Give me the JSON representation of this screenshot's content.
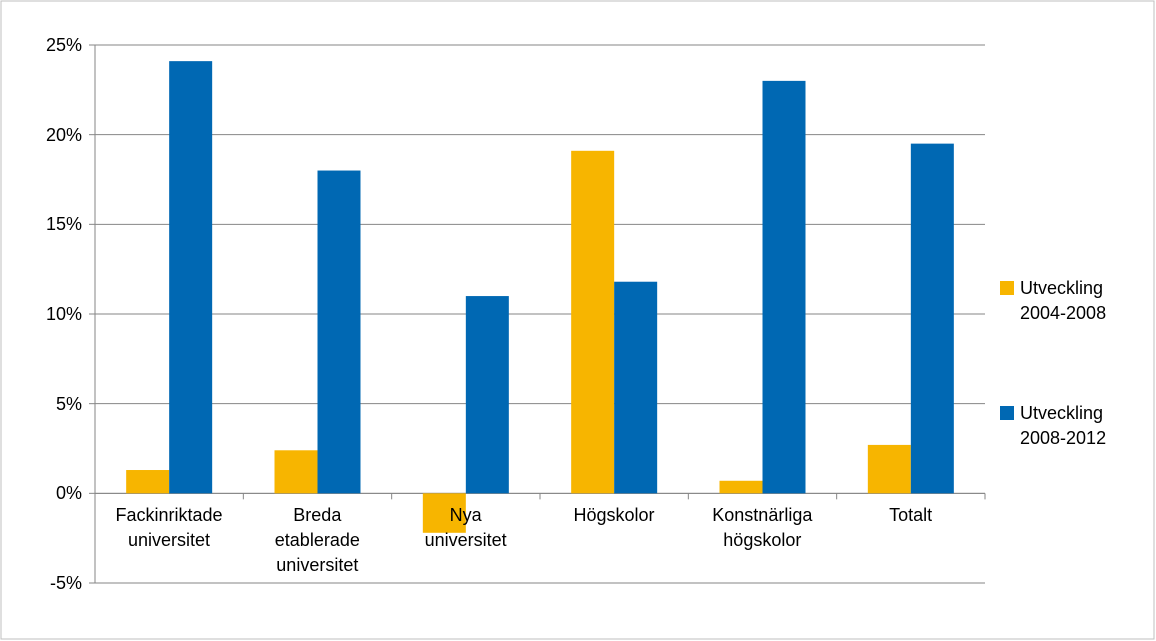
{
  "chart_data": {
    "type": "bar",
    "categories": [
      "Fackinriktade\nuniversitet",
      "Breda\netablerade\nuniversitet",
      "Nya\nuniversitet",
      "Högskolor",
      "Konstnärliga\nhögskolor",
      "Totalt"
    ],
    "series": [
      {
        "name": "Utveckling\n2004-2008",
        "color": "#f7b500",
        "values": [
          1.3,
          2.4,
          -2.2,
          19.1,
          0.7,
          2.7
        ]
      },
      {
        "name": "Utveckling\n2008-2012",
        "color": "#0068b3",
        "values": [
          24.1,
          18.0,
          11.0,
          11.8,
          23.0,
          19.5
        ]
      }
    ],
    "ylim": [
      -5,
      25
    ],
    "yticks": [
      {
        "value": -5,
        "label": "-5%"
      },
      {
        "value": 0,
        "label": "0%"
      },
      {
        "value": 5,
        "label": "5%"
      },
      {
        "value": 10,
        "label": "10%"
      },
      {
        "value": 15,
        "label": "15%"
      },
      {
        "value": 20,
        "label": "20%"
      },
      {
        "value": 25,
        "label": "25%"
      }
    ],
    "grid": true,
    "legend": "right"
  }
}
